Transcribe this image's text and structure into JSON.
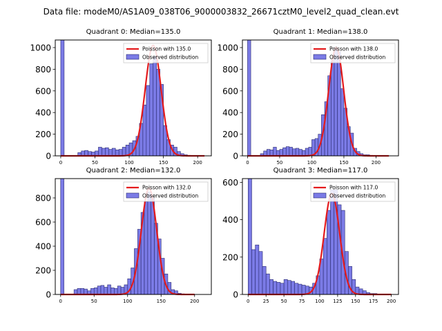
{
  "suptitle": "Data file: modeM0/AS1A09_038T06_9000003832_26671cztM0_level2_quad_clean.evt",
  "colors": {
    "bar_fill": "#7b7be6",
    "bar_edge": "#2a2a6e",
    "fit": "#e41a1c"
  },
  "chart_data": [
    {
      "type": "bar",
      "title": "Quadrant 0: Median=135.0",
      "legend": {
        "fit_label": "Poisson with 135.0",
        "hist_label": "Observed distribution",
        "placement": "top-right"
      },
      "xlim": [
        -8,
        220
      ],
      "ylim": [
        0,
        1070
      ],
      "xticks": [
        0,
        50,
        100,
        150,
        200
      ],
      "yticks": [
        0,
        200,
        400,
        600,
        800,
        1000
      ],
      "bin_width": 5,
      "bin_starts": [
        0,
        25,
        30,
        35,
        40,
        45,
        50,
        55,
        60,
        65,
        70,
        75,
        80,
        85,
        90,
        95,
        100,
        105,
        110,
        115,
        120,
        125,
        130,
        135,
        140,
        145,
        150,
        155,
        160,
        165,
        170,
        175,
        180,
        185
      ],
      "values": [
        1070,
        30,
        45,
        50,
        40,
        35,
        45,
        80,
        70,
        75,
        60,
        70,
        55,
        60,
        80,
        100,
        120,
        140,
        180,
        300,
        470,
        650,
        850,
        920,
        800,
        660,
        280,
        150,
        100,
        80,
        40,
        20,
        10,
        5
      ],
      "fit": {
        "mean": 135.0,
        "peak": 1020,
        "x_range": [
          0,
          210
        ]
      }
    },
    {
      "type": "bar",
      "title": "Quadrant 1: Median=138.0",
      "legend": {
        "fit_label": "Poisson with 138.0",
        "hist_label": "Observed distribution",
        "placement": "top-right"
      },
      "xlim": [
        -8,
        235
      ],
      "ylim": [
        0,
        1070
      ],
      "xticks": [
        0,
        50,
        100,
        150,
        200
      ],
      "yticks": [
        0,
        200,
        400,
        600,
        800,
        1000
      ],
      "bin_width": 5,
      "bin_starts": [
        0,
        20,
        25,
        30,
        35,
        40,
        45,
        50,
        55,
        60,
        65,
        70,
        75,
        80,
        85,
        90,
        95,
        100,
        105,
        110,
        115,
        120,
        125,
        130,
        135,
        140,
        145,
        150,
        155,
        160,
        165,
        170,
        175,
        180,
        185,
        190
      ],
      "values": [
        1070,
        20,
        45,
        60,
        55,
        80,
        50,
        60,
        75,
        85,
        80,
        65,
        70,
        60,
        50,
        70,
        80,
        150,
        160,
        200,
        380,
        500,
        740,
        880,
        1000,
        960,
        620,
        440,
        270,
        210,
        70,
        40,
        20,
        10,
        10,
        5
      ],
      "fit": {
        "mean": 138.0,
        "peak": 1000,
        "x_range": [
          0,
          220
        ]
      }
    },
    {
      "type": "bar",
      "title": "Quadrant 2: Median=132.0",
      "legend": {
        "fit_label": "Poisson with 132.0",
        "hist_label": "Observed distribution",
        "placement": "top-right"
      },
      "xlim": [
        -8,
        225
      ],
      "ylim": [
        0,
        960
      ],
      "xticks": [
        0,
        50,
        100,
        150,
        200
      ],
      "yticks": [
        0,
        200,
        400,
        600,
        800
      ],
      "bin_width": 5,
      "bin_starts": [
        0,
        20,
        25,
        30,
        35,
        40,
        45,
        50,
        55,
        60,
        65,
        70,
        75,
        80,
        85,
        90,
        95,
        100,
        105,
        110,
        115,
        120,
        125,
        130,
        135,
        140,
        145,
        150,
        155,
        160,
        165,
        170,
        175,
        180
      ],
      "values": [
        960,
        40,
        50,
        50,
        45,
        30,
        50,
        55,
        70,
        75,
        60,
        80,
        55,
        50,
        70,
        60,
        80,
        130,
        220,
        380,
        540,
        680,
        770,
        850,
        800,
        590,
        460,
        300,
        170,
        100,
        40,
        30,
        10,
        5
      ],
      "fit": {
        "mean": 132.0,
        "peak": 880,
        "x_range": [
          0,
          200
        ]
      }
    },
    {
      "type": "bar",
      "title": "Quadrant 3: Median=117.0",
      "legend": {
        "fit_label": "Poisson with 117.0",
        "hist_label": "Observed distribution",
        "placement": "top-right"
      },
      "xlim": [
        -8,
        210
      ],
      "ylim": [
        0,
        620
      ],
      "xticks": [
        0,
        25,
        50,
        75,
        100,
        125,
        150,
        175,
        200
      ],
      "yticks": [
        0,
        200,
        400,
        600
      ],
      "bin_width": 5,
      "bin_starts": [
        0,
        5,
        10,
        15,
        20,
        25,
        30,
        35,
        40,
        45,
        50,
        55,
        60,
        65,
        70,
        75,
        80,
        85,
        90,
        95,
        100,
        105,
        110,
        115,
        120,
        125,
        130,
        135,
        140,
        145,
        150,
        155,
        160,
        165,
        170,
        175
      ],
      "values": [
        620,
        240,
        265,
        230,
        150,
        110,
        80,
        70,
        65,
        60,
        80,
        75,
        70,
        60,
        55,
        50,
        45,
        40,
        60,
        100,
        190,
        300,
        450,
        560,
        560,
        480,
        450,
        230,
        150,
        80,
        40,
        30,
        20,
        10,
        5,
        5
      ],
      "fit": {
        "mean": 117.0,
        "peak": 540,
        "x_range": [
          0,
          200
        ]
      }
    }
  ]
}
